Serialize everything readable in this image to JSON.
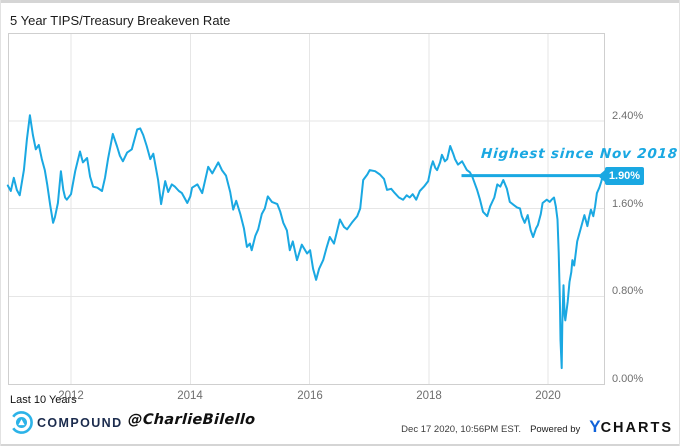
{
  "header": {
    "title": "5 Year TIPS/Treasury Breakeven Rate"
  },
  "colors": {
    "line": "#1aa8e2",
    "annotation": "#1aa8e2",
    "grid": "#e6e6e6",
    "plot_border": "#cfcfcf",
    "tick_text": "#6e6e6e",
    "compound_navy": "#1b2b4d",
    "compound_cyan": "#2cb3e8",
    "ycharts_blue": "#1062d9"
  },
  "chart_data": {
    "type": "line",
    "title": "5 Year TIPS/Treasury Breakeven Rate",
    "xlabel": "",
    "ylabel": "",
    "grid": true,
    "legend_position": "none",
    "xlim": [
      2010.943,
      2020.956
    ],
    "ylim": [
      0,
      3.2
    ],
    "x_ticks": [
      {
        "label": "2012",
        "value": 2012
      },
      {
        "label": "2014",
        "value": 2014
      },
      {
        "label": "2016",
        "value": 2016
      },
      {
        "label": "2018",
        "value": 2018
      },
      {
        "label": "2020",
        "value": 2020
      }
    ],
    "y_ticks": [
      {
        "label": "2.40%",
        "value": 2.4
      },
      {
        "label": "1.60%",
        "value": 1.6
      },
      {
        "label": "0.80%",
        "value": 0.8
      },
      {
        "label": "0.00%",
        "value": 0.0
      }
    ],
    "annotation": {
      "text": "Highest since Nov 2018",
      "label": "1.90%",
      "level": 1.9,
      "start_year": 2018.55
    },
    "series": [
      {
        "name": "5 Year TIPS/Treasury Breakeven Rate",
        "points": [
          [
            2010.94,
            1.81
          ],
          [
            2010.99,
            1.76
          ],
          [
            2011.04,
            1.88
          ],
          [
            2011.09,
            1.77
          ],
          [
            2011.14,
            1.72
          ],
          [
            2011.21,
            1.95
          ],
          [
            2011.26,
            2.23
          ],
          [
            2011.31,
            2.45
          ],
          [
            2011.36,
            2.27
          ],
          [
            2011.41,
            2.14
          ],
          [
            2011.46,
            2.18
          ],
          [
            2011.51,
            2.05
          ],
          [
            2011.56,
            1.95
          ],
          [
            2011.6,
            1.82
          ],
          [
            2011.65,
            1.63
          ],
          [
            2011.7,
            1.47
          ],
          [
            2011.73,
            1.52
          ],
          [
            2011.78,
            1.65
          ],
          [
            2011.83,
            1.94
          ],
          [
            2011.87,
            1.77
          ],
          [
            2011.9,
            1.7
          ],
          [
            2011.93,
            1.68
          ],
          [
            2012.0,
            1.73
          ],
          [
            2012.07,
            1.94
          ],
          [
            2012.15,
            2.12
          ],
          [
            2012.2,
            2.02
          ],
          [
            2012.27,
            2.06
          ],
          [
            2012.32,
            1.89
          ],
          [
            2012.37,
            1.8
          ],
          [
            2012.44,
            1.79
          ],
          [
            2012.52,
            1.76
          ],
          [
            2012.57,
            1.88
          ],
          [
            2012.62,
            2.05
          ],
          [
            2012.7,
            2.28
          ],
          [
            2012.77,
            2.17
          ],
          [
            2012.82,
            2.08
          ],
          [
            2012.87,
            2.03
          ],
          [
            2012.94,
            2.11
          ],
          [
            2013.02,
            2.14
          ],
          [
            2013.11,
            2.32
          ],
          [
            2013.16,
            2.33
          ],
          [
            2013.21,
            2.27
          ],
          [
            2013.27,
            2.17
          ],
          [
            2013.33,
            2.05
          ],
          [
            2013.38,
            2.1
          ],
          [
            2013.46,
            1.86
          ],
          [
            2013.51,
            1.64
          ],
          [
            2013.58,
            1.85
          ],
          [
            2013.63,
            1.75
          ],
          [
            2013.69,
            1.82
          ],
          [
            2013.74,
            1.8
          ],
          [
            2013.81,
            1.76
          ],
          [
            2013.86,
            1.74
          ],
          [
            2013.95,
            1.65
          ],
          [
            2014.0,
            1.71
          ],
          [
            2014.03,
            1.79
          ],
          [
            2014.12,
            1.82
          ],
          [
            2014.2,
            1.74
          ],
          [
            2014.3,
            1.98
          ],
          [
            2014.37,
            1.92
          ],
          [
            2014.47,
            2.02
          ],
          [
            2014.53,
            1.95
          ],
          [
            2014.6,
            1.9
          ],
          [
            2014.67,
            1.75
          ],
          [
            2014.72,
            1.59
          ],
          [
            2014.77,
            1.67
          ],
          [
            2014.84,
            1.55
          ],
          [
            2014.9,
            1.42
          ],
          [
            2014.95,
            1.25
          ],
          [
            2015.0,
            1.28
          ],
          [
            2015.03,
            1.22
          ],
          [
            2015.09,
            1.35
          ],
          [
            2015.14,
            1.41
          ],
          [
            2015.2,
            1.55
          ],
          [
            2015.25,
            1.6
          ],
          [
            2015.3,
            1.71
          ],
          [
            2015.37,
            1.66
          ],
          [
            2015.46,
            1.64
          ],
          [
            2015.51,
            1.57
          ],
          [
            2015.56,
            1.47
          ],
          [
            2015.62,
            1.4
          ],
          [
            2015.67,
            1.22
          ],
          [
            2015.72,
            1.3
          ],
          [
            2015.79,
            1.13
          ],
          [
            2015.87,
            1.27
          ],
          [
            2015.96,
            1.19
          ],
          [
            2016.01,
            1.22
          ],
          [
            2016.06,
            1.05
          ],
          [
            2016.11,
            0.95
          ],
          [
            2016.16,
            1.05
          ],
          [
            2016.23,
            1.13
          ],
          [
            2016.29,
            1.25
          ],
          [
            2016.34,
            1.34
          ],
          [
            2016.41,
            1.28
          ],
          [
            2016.51,
            1.5
          ],
          [
            2016.58,
            1.43
          ],
          [
            2016.63,
            1.41
          ],
          [
            2016.71,
            1.47
          ],
          [
            2016.8,
            1.53
          ],
          [
            2016.85,
            1.6
          ],
          [
            2016.9,
            1.86
          ],
          [
            2016.97,
            1.91
          ],
          [
            2017.01,
            1.95
          ],
          [
            2017.1,
            1.94
          ],
          [
            2017.18,
            1.91
          ],
          [
            2017.25,
            1.87
          ],
          [
            2017.3,
            1.77
          ],
          [
            2017.37,
            1.78
          ],
          [
            2017.43,
            1.74
          ],
          [
            2017.5,
            1.7
          ],
          [
            2017.57,
            1.68
          ],
          [
            2017.63,
            1.72
          ],
          [
            2017.68,
            1.7
          ],
          [
            2017.73,
            1.73
          ],
          [
            2017.79,
            1.68
          ],
          [
            2017.85,
            1.76
          ],
          [
            2017.92,
            1.8
          ],
          [
            2017.99,
            1.85
          ],
          [
            2018.04,
            1.98
          ],
          [
            2018.07,
            2.03
          ],
          [
            2018.11,
            1.97
          ],
          [
            2018.14,
            1.95
          ],
          [
            2018.19,
            2.02
          ],
          [
            2018.22,
            2.09
          ],
          [
            2018.27,
            2.03
          ],
          [
            2018.31,
            2.05
          ],
          [
            2018.36,
            2.17
          ],
          [
            2018.41,
            2.1
          ],
          [
            2018.44,
            2.05
          ],
          [
            2018.49,
            2.0
          ],
          [
            2018.56,
            2.03
          ],
          [
            2018.61,
            1.98
          ],
          [
            2018.64,
            1.95
          ],
          [
            2018.69,
            1.93
          ],
          [
            2018.73,
            1.89
          ],
          [
            2018.81,
            1.77
          ],
          [
            2018.86,
            1.68
          ],
          [
            2018.91,
            1.57
          ],
          [
            2018.98,
            1.53
          ],
          [
            2019.03,
            1.62
          ],
          [
            2019.1,
            1.7
          ],
          [
            2019.15,
            1.82
          ],
          [
            2019.2,
            1.8
          ],
          [
            2019.25,
            1.86
          ],
          [
            2019.31,
            1.78
          ],
          [
            2019.36,
            1.66
          ],
          [
            2019.43,
            1.63
          ],
          [
            2019.48,
            1.61
          ],
          [
            2019.53,
            1.6
          ],
          [
            2019.56,
            1.53
          ],
          [
            2019.61,
            1.47
          ],
          [
            2019.66,
            1.54
          ],
          [
            2019.71,
            1.4
          ],
          [
            2019.75,
            1.34
          ],
          [
            2019.8,
            1.42
          ],
          [
            2019.83,
            1.45
          ],
          [
            2019.88,
            1.55
          ],
          [
            2019.91,
            1.65
          ],
          [
            2019.98,
            1.68
          ],
          [
            2020.03,
            1.66
          ],
          [
            2020.06,
            1.68
          ],
          [
            2020.1,
            1.7
          ],
          [
            2020.13,
            1.62
          ],
          [
            2020.16,
            1.5
          ],
          [
            2020.18,
            1.2
          ],
          [
            2020.2,
            0.75
          ],
          [
            2020.21,
            0.4
          ],
          [
            2020.23,
            0.145
          ],
          [
            2020.24,
            0.55
          ],
          [
            2020.26,
            0.9
          ],
          [
            2020.28,
            0.62
          ],
          [
            2020.29,
            0.58
          ],
          [
            2020.33,
            0.75
          ],
          [
            2020.36,
            0.93
          ],
          [
            2020.39,
            1.02
          ],
          [
            2020.41,
            1.13
          ],
          [
            2020.44,
            1.08
          ],
          [
            2020.49,
            1.3
          ],
          [
            2020.52,
            1.36
          ],
          [
            2020.56,
            1.44
          ],
          [
            2020.61,
            1.54
          ],
          [
            2020.66,
            1.44
          ],
          [
            2020.69,
            1.52
          ],
          [
            2020.72,
            1.59
          ],
          [
            2020.76,
            1.53
          ],
          [
            2020.79,
            1.62
          ],
          [
            2020.82,
            1.74
          ],
          [
            2020.86,
            1.79
          ],
          [
            2020.89,
            1.84
          ],
          [
            2020.92,
            1.9
          ]
        ]
      }
    ]
  },
  "footer": {
    "range_label": "Last 10 Years",
    "brand": "COMPOUND",
    "handle": "@CharlieBilello",
    "timestamp": "Dec 17 2020, 10:56PM EST.",
    "powered_by": "Powered by",
    "ycharts_y": "Y",
    "ycharts_rest": "CHARTS"
  }
}
